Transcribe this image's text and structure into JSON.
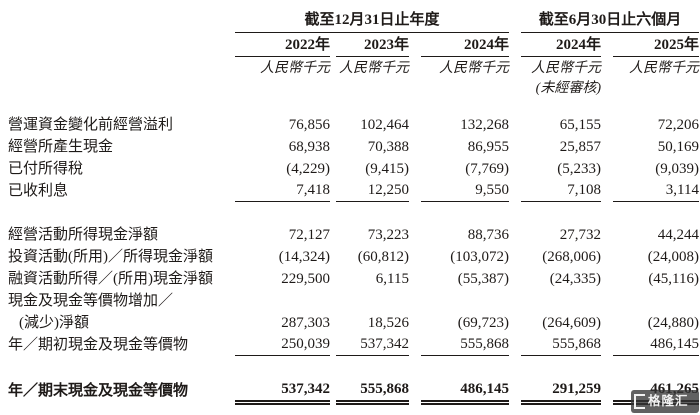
{
  "table": {
    "col_groups": [
      {
        "label": "截至12月31日止年度"
      },
      {
        "label": "截至6月30日止六個月"
      }
    ],
    "columns": [
      {
        "year": "2022年"
      },
      {
        "year": "2023年"
      },
      {
        "year": "2024年"
      },
      {
        "year": "2024年"
      },
      {
        "year": "2025年"
      }
    ],
    "unit": "人民幣千元",
    "unaudited": "(未經審核)",
    "rows": [
      {
        "type": "data",
        "label": "營運資金變化前經營溢利",
        "values": [
          "76,856",
          "102,464",
          "132,268",
          "65,155",
          "72,206"
        ]
      },
      {
        "type": "data",
        "label": "經營所產生現金",
        "values": [
          "68,938",
          "70,388",
          "86,955",
          "25,857",
          "50,169"
        ]
      },
      {
        "type": "data",
        "label": "已付所得稅",
        "values": [
          "(4,229)",
          "(9,415)",
          "(7,769)",
          "(5,233)",
          "(9,039)"
        ]
      },
      {
        "type": "data",
        "label": "已收利息",
        "values": [
          "7,418",
          "12,250",
          "9,550",
          "7,108",
          "3,114"
        ],
        "rule": "single"
      },
      {
        "type": "spacer",
        "size": 22
      },
      {
        "type": "data",
        "label": "經營活動所得現金淨額",
        "values": [
          "72,127",
          "73,223",
          "88,736",
          "27,732",
          "44,244"
        ]
      },
      {
        "type": "data",
        "label": "投資活動(所用)／所得現金淨額",
        "values": [
          "(14,324)",
          "(60,812)",
          "(103,072)",
          "(268,006)",
          "(24,008)"
        ]
      },
      {
        "type": "data",
        "label": "融資活動所得／(所用)現金淨額",
        "values": [
          "229,500",
          "6,115",
          "(55,387)",
          "(24,335)",
          "(45,116)"
        ]
      },
      {
        "type": "data",
        "label": "現金及現金等價物增加／",
        "label2": "(減少)淨額",
        "values": [
          "287,303",
          "18,526",
          "(69,723)",
          "(264,609)",
          "(24,880)"
        ]
      },
      {
        "type": "data",
        "label": "年／期初現金及現金等價物",
        "values": [
          "250,039",
          "537,342",
          "555,868",
          "555,868",
          "486,145"
        ],
        "rule": "single"
      },
      {
        "type": "spacer",
        "size": 24
      },
      {
        "type": "data",
        "label": "年／期末現金及現金等價物",
        "values": [
          "537,342",
          "555,868",
          "486,145",
          "291,259",
          "461,265"
        ],
        "rule": "double",
        "bold": true
      }
    ]
  },
  "watermark": {
    "text": "格隆汇"
  },
  "colors": {
    "text": "#1e1a18",
    "rule": "#1e1a18",
    "watermark_bg": "#343434"
  }
}
